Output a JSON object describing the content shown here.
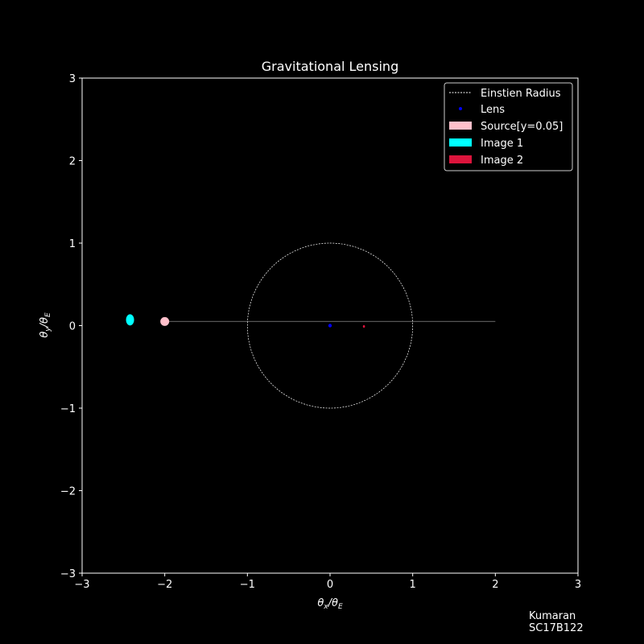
{
  "chart_data": {
    "type": "scatter",
    "title": "Gravitational Lensing",
    "xlabel": "θx/θE",
    "ylabel": "θy/θE",
    "xlim": [
      -3,
      3
    ],
    "ylim": [
      -3,
      3
    ],
    "xticks": [
      "−3",
      "−2",
      "−1",
      "0",
      "1",
      "2",
      "3"
    ],
    "yticks": [
      "−3",
      "−2",
      "−1",
      "0",
      "1",
      "2",
      "3"
    ],
    "grid": false,
    "legend_position": "top-right",
    "einstein_radius": {
      "name": "Einstien Radius",
      "center": [
        0,
        0
      ],
      "radius": 1,
      "color": "#ffffff"
    },
    "lens": {
      "name": "Lens",
      "x": 0,
      "y": 0,
      "color": "#0000ff"
    },
    "source": {
      "name": "Source[y=0.05]",
      "x": -2.0,
      "y": 0.05,
      "color": "#ffc0cb"
    },
    "image1": {
      "name": "Image 1",
      "x": -2.42,
      "y": 0.07,
      "color": "#00ffff"
    },
    "image2": {
      "name": "Image 2",
      "x": 0.41,
      "y": -0.01,
      "color": "#dc143c"
    },
    "source_path": {
      "x": [
        -2.0,
        2.0
      ],
      "y": [
        0.05,
        0.05
      ],
      "color": "#555555"
    }
  },
  "author": {
    "name": "Kumaran",
    "id": "SC17B122"
  }
}
